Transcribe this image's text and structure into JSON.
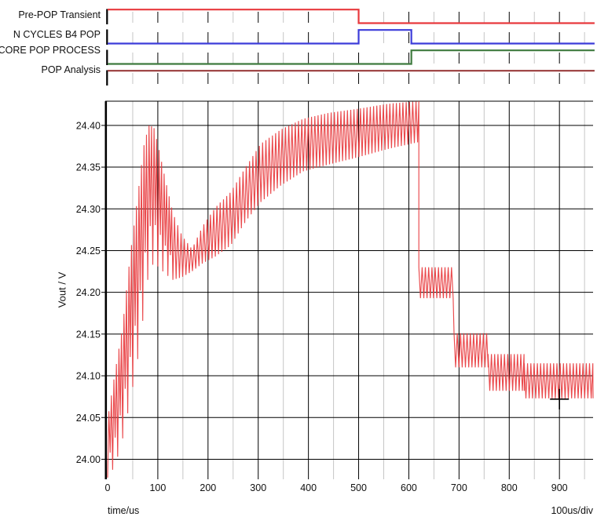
{
  "ui": {
    "xlabel": "time/us",
    "x_scale": "100us/div",
    "ylabel": "Vout / V"
  },
  "digital_lanes": [
    {
      "label": "Pre-POP Transient",
      "color": "#e8393d",
      "segments": [
        {
          "from": 0,
          "to": 500,
          "level": "high"
        },
        {
          "from": 500,
          "to": 970,
          "level": "low"
        }
      ]
    },
    {
      "label": "N CYCLES B4 POP",
      "color": "#3c3cd9",
      "segments": [
        {
          "from": 0,
          "to": 500,
          "level": "low"
        },
        {
          "from": 500,
          "to": 605,
          "level": "high"
        },
        {
          "from": 605,
          "to": 970,
          "level": "low"
        }
      ]
    },
    {
      "label": "CORE POP PROCESS",
      "color": "#3e7a3e",
      "segments": [
        {
          "from": 0,
          "to": 605,
          "level": "low"
        },
        {
          "from": 605,
          "to": 970,
          "level": "high"
        }
      ]
    },
    {
      "label": "POP Analysis",
      "color": "#9a3c3c",
      "segments": [
        {
          "from": 0,
          "to": 970,
          "level": "high"
        }
      ]
    }
  ],
  "chart_data": {
    "type": "line",
    "title": "",
    "xlabel": "time/us",
    "ylabel": "Vout / V",
    "x_per_div": "100us/div",
    "xlim": [
      0,
      967
    ],
    "ylim": [
      23.976,
      24.429
    ],
    "x_ticks_major": [
      0,
      100,
      200,
      300,
      400,
      500,
      600,
      700,
      800,
      900
    ],
    "x_ticks_minor": [
      50,
      150,
      250,
      350,
      450,
      550,
      650,
      750,
      850,
      950
    ],
    "x_tick_labels": [
      "0",
      "100",
      "200",
      "300",
      "400",
      "500",
      "600",
      "700",
      "800",
      "900"
    ],
    "y_ticks": [
      24.0,
      24.05,
      24.1,
      24.15,
      24.2,
      24.25,
      24.3,
      24.35,
      24.4
    ],
    "y_tick_labels": [
      "24.00",
      "24.05",
      "24.10",
      "24.15",
      "24.20",
      "24.25",
      "24.30",
      "24.35",
      "24.40"
    ],
    "grid_major_color": "#000000",
    "grid_minor_color": "#c6c6c6",
    "series_name": "Vout",
    "series_color": "#e8393d",
    "ripple_period_us": 6.5,
    "startup_ripple_period_us": 5,
    "startup_envelope": [
      [
        0,
        23.978,
        24.048
      ],
      [
        15,
        23.992,
        24.105
      ],
      [
        30,
        24.025,
        24.16
      ],
      [
        45,
        24.07,
        24.245
      ],
      [
        60,
        24.12,
        24.315
      ],
      [
        72,
        24.175,
        24.375
      ],
      [
        82,
        24.225,
        24.4
      ],
      [
        92,
        24.235,
        24.398
      ],
      [
        102,
        24.23,
        24.372
      ],
      [
        115,
        24.222,
        24.335
      ],
      [
        130,
        24.215,
        24.295
      ],
      [
        148,
        24.218,
        24.268
      ],
      [
        168,
        24.225,
        24.252
      ],
      [
        190,
        24.235,
        24.28
      ],
      [
        215,
        24.243,
        24.302
      ],
      [
        245,
        24.256,
        24.32
      ],
      [
        275,
        24.285,
        24.35
      ],
      [
        305,
        24.308,
        24.378
      ],
      [
        345,
        24.328,
        24.395
      ],
      [
        390,
        24.345,
        24.408
      ],
      [
        440,
        24.353,
        24.415
      ],
      [
        500,
        24.362,
        24.42
      ],
      [
        560,
        24.372,
        24.426
      ],
      [
        620,
        24.38,
        24.429
      ]
    ],
    "pop_steps": [
      {
        "from": 620,
        "to": 690,
        "min": 24.193,
        "max": 24.23
      },
      {
        "from": 690,
        "to": 758,
        "min": 24.11,
        "max": 24.151
      },
      {
        "from": 758,
        "to": 830,
        "min": 24.082,
        "max": 24.126
      },
      {
        "from": 830,
        "to": 967,
        "min": 24.073,
        "max": 24.115
      }
    ],
    "cursor": {
      "t_us": 900,
      "v": 24.072
    }
  }
}
